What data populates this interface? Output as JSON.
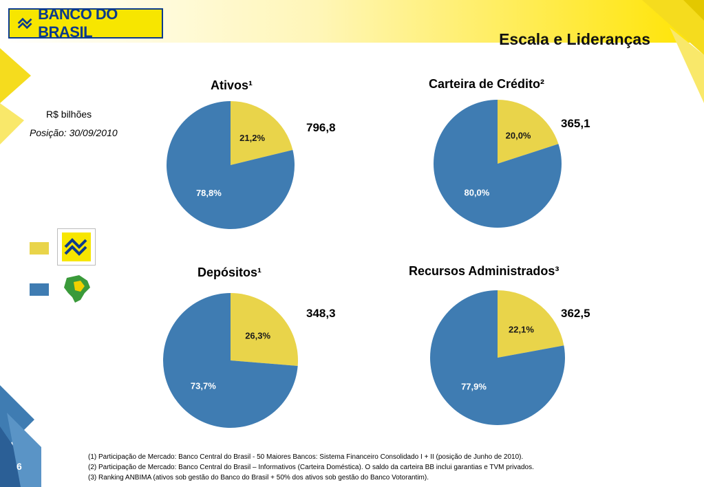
{
  "header": {
    "brand_name": "BANCO DO BRASIL",
    "title": "Escala e Lideranças"
  },
  "info": {
    "unit": "R$ bilhões",
    "date": "Posição: 30/09/2010"
  },
  "colors": {
    "bb_share": "#e9d44a",
    "market": "#3f7cb2",
    "brand_blue": "#0b3a8c",
    "brand_yellow": "#f7e600"
  },
  "legend": [
    {
      "color": "#e9d44a",
      "icon": "banco-do-brasil-logo-icon"
    },
    {
      "color": "#3f7cb2",
      "icon": "brazil-map-icon"
    }
  ],
  "chart_data": [
    {
      "type": "pie",
      "title": "Ativos¹",
      "total": "796,8",
      "slices": [
        {
          "label": "21,2%",
          "value": 21.2,
          "color": "#e9d44a"
        },
        {
          "label": "78,8%",
          "value": 78.8,
          "color": "#3f7cb2"
        }
      ]
    },
    {
      "type": "pie",
      "title": "Carteira de Crédito²",
      "total": "365,1",
      "slices": [
        {
          "label": "20,0%",
          "value": 20.0,
          "color": "#e9d44a"
        },
        {
          "label": "80,0%",
          "value": 80.0,
          "color": "#3f7cb2"
        }
      ]
    },
    {
      "type": "pie",
      "title": "Depósitos¹",
      "total": "348,3",
      "slices": [
        {
          "label": "26,3%",
          "value": 26.3,
          "color": "#e9d44a"
        },
        {
          "label": "73,7%",
          "value": 73.7,
          "color": "#3f7cb2"
        }
      ]
    },
    {
      "type": "pie",
      "title": "Recursos Administrados³",
      "total": "362,5",
      "slices": [
        {
          "label": "22,1%",
          "value": 22.1,
          "color": "#e9d44a"
        },
        {
          "label": "77,9%",
          "value": 77.9,
          "color": "#3f7cb2"
        }
      ]
    }
  ],
  "footnotes": [
    "(1) Participação de Mercado: Banco Central do Brasil  - 50 Maiores Bancos: Sistema Financeiro Consolidado I + II (posição de Junho de 2010).",
    "(2) Participação de Mercado: Banco Central do Brasil – Informativos (Carteira Doméstica). O saldo da carteira BB inclui garantias e TVM privados.",
    "(3) Ranking ANBIMA (ativos sob gestão do Banco do Brasil + 50% dos ativos sob gestão do Banco Votorantim)."
  ],
  "page_number": "6"
}
